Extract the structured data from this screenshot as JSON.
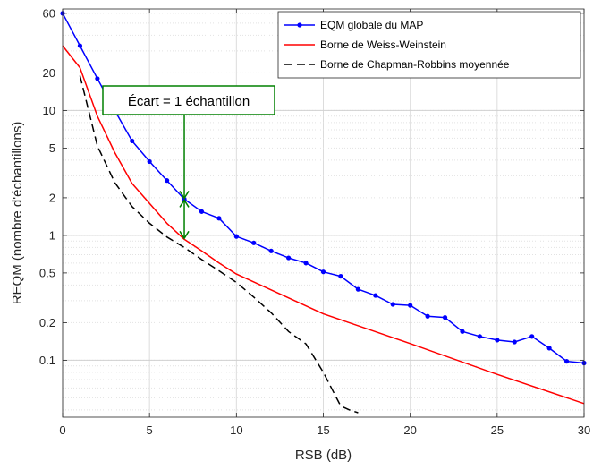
{
  "chart_data": {
    "type": "line",
    "xlabel": "RSB (dB)",
    "ylabel": "REQM (nombre d'échantillons)",
    "xlim": [
      0,
      30
    ],
    "ylim": [
      0.035,
      65
    ],
    "yscale": "log",
    "grid": true,
    "legend_position": "top-right",
    "x_ticks": [
      "0",
      "5",
      "10",
      "15",
      "20",
      "25",
      "30"
    ],
    "y_ticks": [
      {
        "value": 0.1,
        "label": "0.1"
      },
      {
        "value": 0.2,
        "label": "0.2"
      },
      {
        "value": 0.5,
        "label": "0.5"
      },
      {
        "value": 1,
        "label": "1"
      },
      {
        "value": 2,
        "label": "2"
      },
      {
        "value": 5,
        "label": "5"
      },
      {
        "value": 10,
        "label": "10"
      },
      {
        "value": 20,
        "label": "20"
      },
      {
        "value": 60,
        "label": "60"
      }
    ],
    "series": [
      {
        "name": "EQM globale du MAP",
        "color": "#0000ff",
        "marker": "dot",
        "x": [
          0,
          1,
          2,
          3,
          4,
          5,
          6,
          7,
          8,
          9,
          10,
          11,
          12,
          13,
          14,
          15,
          16,
          17,
          18,
          19,
          20,
          21,
          22,
          23,
          24,
          25,
          26,
          27,
          28,
          29,
          30
        ],
        "y": [
          60,
          33,
          18,
          10,
          5.7,
          3.9,
          2.75,
          1.95,
          1.55,
          1.37,
          0.98,
          0.87,
          0.75,
          0.66,
          0.6,
          0.51,
          0.47,
          0.37,
          0.33,
          0.28,
          0.275,
          0.225,
          0.22,
          0.17,
          0.155,
          0.145,
          0.14,
          0.155,
          0.125,
          0.098,
          0.095
        ]
      },
      {
        "name": "Borne de Weiss-Weinstein",
        "color": "#ff0000",
        "marker": "none",
        "x": [
          0,
          1,
          2,
          3,
          4,
          5,
          6,
          7,
          8,
          9,
          10,
          15,
          20,
          25,
          30
        ],
        "y": [
          33,
          22,
          9,
          4.6,
          2.6,
          1.8,
          1.25,
          0.93,
          0.75,
          0.6,
          0.49,
          0.235,
          0.136,
          0.077,
          0.045
        ]
      },
      {
        "name": "Borne de Chapman-Robbins moyennée",
        "color": "#000000",
        "marker": "none",
        "dashed": true,
        "x": [
          1,
          2,
          3,
          4,
          5,
          6,
          7,
          8,
          9,
          10,
          11,
          12,
          13,
          14,
          15,
          16,
          16.5,
          17
        ],
        "y": [
          19,
          5.2,
          2.65,
          1.7,
          1.25,
          0.97,
          0.8,
          0.64,
          0.52,
          0.42,
          0.32,
          0.24,
          0.17,
          0.135,
          0.08,
          0.043,
          0.04,
          0.038
        ]
      }
    ],
    "annotation": {
      "text": "Écart = 1 échantillon",
      "x": 7,
      "y_top": 1.95,
      "y_bottom": 0.93,
      "color": "#008000"
    }
  }
}
